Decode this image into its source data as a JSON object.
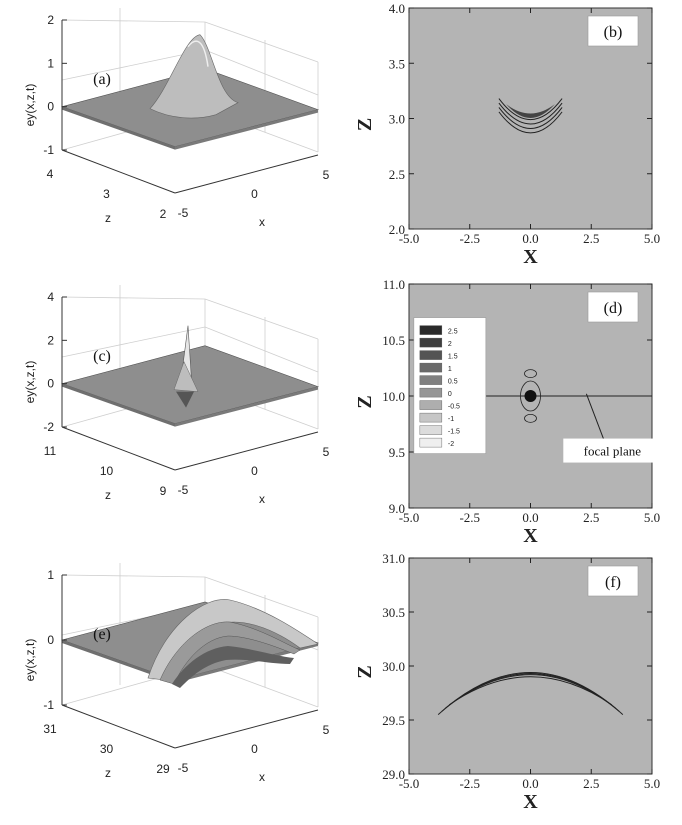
{
  "colors": {
    "contour_bg": "#b4b4b4",
    "surface_top": "#8e8e8e",
    "surface_front": "#6f6f6f",
    "box": "#ffffff",
    "ink": "#222222"
  },
  "chart_data": [
    {
      "id": "a",
      "type": "surface",
      "panel_label": "(a)",
      "zlabel": "e_y(x,z,t)",
      "xlabel": "x",
      "ylabel": "z",
      "xticks": [
        "-5",
        "0",
        "5"
      ],
      "yticks": [
        "2",
        "3",
        "4"
      ],
      "zticks": [
        "-1",
        "0",
        "1",
        "2"
      ],
      "xlim": [
        -5,
        5
      ],
      "ylim": [
        2,
        4
      ],
      "zlim": [
        -1,
        2
      ],
      "feature": "smooth pulse peak near z=3.1"
    },
    {
      "id": "b",
      "type": "contour",
      "panel_label": "(b)",
      "xlabel": "X",
      "ylabel": "Z",
      "xticks": [
        "-5.0",
        "-2.5",
        "0.0",
        "2.5",
        "5.0"
      ],
      "yticks": [
        "2.0",
        "2.5",
        "3.0",
        "3.5",
        "4.0"
      ],
      "xlim": [
        -5,
        5
      ],
      "ylim": [
        2,
        4
      ],
      "feature": "crescent-shaped pulse, x from -1.3 to 1.3, z from 2.9 to 3.2"
    },
    {
      "id": "c",
      "type": "surface",
      "panel_label": "(c)",
      "zlabel": "e_y(x,z,t)",
      "xlabel": "x",
      "ylabel": "z",
      "xticks": [
        "-5",
        "0",
        "5"
      ],
      "yticks": [
        "9",
        "10",
        "11"
      ],
      "zticks": [
        "-2",
        "0",
        "2",
        "4"
      ],
      "xlim": [
        -5,
        5
      ],
      "ylim": [
        9,
        11
      ],
      "zlim": [
        -2,
        4
      ],
      "feature": "sharp focused spike at x=0, z=10"
    },
    {
      "id": "d",
      "type": "contour",
      "panel_label": "(d)",
      "xlabel": "X",
      "ylabel": "Z",
      "xticks": [
        "-5.0",
        "-2.5",
        "0.0",
        "2.5",
        "5.0"
      ],
      "yticks": [
        "9.0",
        "9.5",
        "10.0",
        "10.5",
        "11.0"
      ],
      "xlim": [
        -5,
        5
      ],
      "ylim": [
        9,
        11
      ],
      "legend": [
        "2.5",
        "2",
        "1.5",
        "1",
        "0.5",
        "0",
        "-0.5",
        "-1",
        "-1.5",
        "-2"
      ],
      "legend_position": "left",
      "annotation": "focal plane",
      "focal_plane_z": 10.0,
      "feature": "focused spot at x=0, z=10"
    },
    {
      "id": "e",
      "type": "surface",
      "panel_label": "(e)",
      "zlabel": "e_y(x,z,t)",
      "xlabel": "x",
      "ylabel": "z",
      "xticks": [
        "-5",
        "0",
        "5"
      ],
      "yticks": [
        "29",
        "30",
        "31"
      ],
      "zticks": [
        "-1",
        "0",
        "1"
      ],
      "xlim": [
        -5,
        5
      ],
      "ylim": [
        29,
        31
      ],
      "zlim": [
        -1,
        1
      ],
      "feature": "wide diverging curved pulse near z=29.9"
    },
    {
      "id": "f",
      "type": "contour",
      "panel_label": "(f)",
      "xlabel": "X",
      "ylabel": "Z",
      "xticks": [
        "-5.0",
        "-2.5",
        "0.0",
        "2.5",
        "5.0"
      ],
      "yticks": [
        "29.0",
        "29.5",
        "30.0",
        "30.5",
        "31.0"
      ],
      "xlim": [
        -5,
        5
      ],
      "ylim": [
        29,
        31
      ],
      "feature": "arc-shaped pulse, x from -3.8 to 3.8, z from 29.55 to 30.05"
    }
  ]
}
